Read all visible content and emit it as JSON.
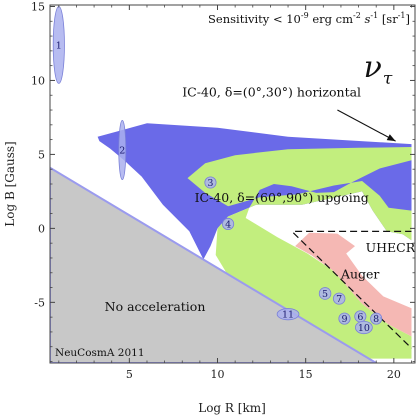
{
  "chart_data": {
    "type": "area",
    "xlabel": "Log R [km]",
    "ylabel": "Log B [Gauss]",
    "xlim": [
      0.5,
      21.2
    ],
    "ylim": [
      -9.1,
      15.1
    ],
    "x_ticks": [
      "5",
      "10",
      "15",
      "20"
    ],
    "y_ticks": [
      "-5",
      "0",
      "5",
      "10",
      "15"
    ],
    "x_tick_values": [
      5,
      10,
      15,
      20
    ],
    "y_tick_values": [
      -5,
      0,
      5,
      10,
      15
    ],
    "grid": false,
    "sensitivity_text": "Sensitivity < 10",
    "sensitivity_exp": "-9",
    "sensitivity_units": "erg cm",
    "sensitivity_units_exp_cm": "-2",
    "sensitivity_units_s": "s",
    "sensitivity_units_exp_s": "-1",
    "sensitivity_units_sr": "[sr",
    "sensitivity_units_exp_sr": "-1",
    "sensitivity_close": "]",
    "flavor_symbol": "ν",
    "flavor_subscript": "τ",
    "credit": "NeuCosmA 2011",
    "colors": {
      "horizontal": "#6a6ae8",
      "upgoing": "#c2ee7e",
      "auger": "#f5b8b4",
      "no_acceleration": "#c8c8c8",
      "no_acceleration_edge": "#9b9bee",
      "source": "#aab0ee",
      "source_edge": "#7a80d8"
    },
    "regions": [
      {
        "name": "IC-40, δ=(0°,30°) horizontal",
        "label": "IC-40, δ=(0°,30°) horizontal",
        "color_key": "horizontal",
        "polygon": [
          [
            3.2,
            6.2
          ],
          [
            6,
            7.1
          ],
          [
            10,
            6.8
          ],
          [
            14,
            6.2
          ],
          [
            21,
            5.7
          ],
          [
            21,
            -0.8
          ],
          [
            20.5,
            -0.4
          ],
          [
            19.6,
            -0.2
          ],
          [
            18.8,
            1.2
          ],
          [
            18.2,
            2.5
          ],
          [
            14.8,
            1.6
          ],
          [
            12.2,
            1.6
          ],
          [
            10.6,
            0.8
          ],
          [
            10,
            0
          ],
          [
            9.6,
            -1.2
          ],
          [
            9.2,
            -2.1
          ],
          [
            8.4,
            -0.2
          ],
          [
            6.9,
            1.6
          ],
          [
            5.7,
            3.5
          ],
          [
            4.7,
            4.6
          ],
          [
            3.9,
            5.4
          ],
          [
            3.3,
            5.9
          ]
        ]
      },
      {
        "name": "IC-40, δ=(60°,90°) upgoing",
        "label": "IC-40, δ=(60°,90°) upgoing",
        "color_key": "upgoing",
        "polygon": [
          [
            9.3,
            4.4
          ],
          [
            11,
            4.95
          ],
          [
            14,
            5.35
          ],
          [
            18,
            5.45
          ],
          [
            21,
            5.5
          ],
          [
            21,
            4.6
          ],
          [
            19.2,
            4.05
          ],
          [
            17.6,
            3.1
          ],
          [
            16.6,
            2.45
          ],
          [
            15.6,
            2.4
          ],
          [
            14.2,
            2.85
          ],
          [
            13.2,
            3
          ],
          [
            12.4,
            2.6
          ],
          [
            11.8,
            1.4
          ],
          [
            11.6,
            0.7
          ],
          [
            13.4,
            -0.6
          ],
          [
            15.1,
            -1.7
          ],
          [
            16.6,
            -2.9
          ],
          [
            18.2,
            -5.1
          ],
          [
            19.7,
            -6.5
          ],
          [
            21,
            -7.3
          ],
          [
            21,
            -8.8
          ],
          [
            14,
            -8.8
          ],
          [
            12.4,
            -6.6
          ],
          [
            11.2,
            -4.4
          ],
          [
            10.4,
            -2.8
          ],
          [
            9.9,
            -1.8
          ],
          [
            10,
            0
          ],
          [
            10.6,
            0.8
          ],
          [
            12.2,
            1.6
          ],
          [
            14.8,
            1.6
          ],
          [
            18.2,
            2.5
          ],
          [
            18.8,
            1.2
          ],
          [
            19.6,
            -0.2
          ],
          [
            20.5,
            -0.4
          ],
          [
            21,
            -0.8
          ],
          [
            21,
            1.2
          ],
          [
            19.7,
            1.4
          ],
          [
            19.2,
            2.2
          ],
          [
            18.2,
            3.2
          ],
          [
            16.6,
            2.9
          ],
          [
            14.5,
            2.3
          ],
          [
            12.4,
            2.1
          ],
          [
            10.6,
            1.5
          ],
          [
            9.3,
            2.4
          ],
          [
            8.3,
            3.4
          ]
        ]
      },
      {
        "name": "Auger",
        "label": "Auger",
        "color_key": "auger",
        "polygon": [
          [
            14.4,
            -1.2
          ],
          [
            15.2,
            -0.3
          ],
          [
            16.8,
            -0.35
          ],
          [
            17.8,
            -1.2
          ],
          [
            17.3,
            -1.7
          ],
          [
            18.2,
            -3.2
          ],
          [
            19.4,
            -4.6
          ],
          [
            21,
            -5.4
          ],
          [
            21,
            -7.3
          ],
          [
            19.7,
            -6.5
          ],
          [
            18.2,
            -5.1
          ],
          [
            16.6,
            -2.9
          ],
          [
            15.3,
            -1.8
          ]
        ]
      },
      {
        "name": "No acceleration",
        "label": "No acceleration",
        "color_key": "no_acceleration",
        "polygon": [
          [
            0.5,
            4.1
          ],
          [
            0.5,
            -9.1
          ],
          [
            19,
            -9.1
          ]
        ]
      }
    ],
    "region_labels": [
      {
        "text": "IC-40, δ=(60°,90°) upgoing",
        "x": 8.7,
        "y": 1.8
      },
      {
        "text": "UHECR",
        "x": 18.4,
        "y": -1.6
      },
      {
        "text": "Auger",
        "x": 17,
        "y": -3.4
      },
      {
        "text": "No acceleration",
        "x": 3.6,
        "y": -5.6
      },
      {
        "text": "IC-40, δ=(0°,30°) horizontal",
        "x": 8,
        "y": 8.9
      }
    ],
    "arrow": {
      "from": [
        16.8,
        8
      ],
      "to": [
        20.1,
        5.9
      ]
    },
    "uhecr_line": {
      "points": [
        [
          14.4,
          -0.2
        ],
        [
          21,
          -0.2
        ]
      ],
      "style": "dashed"
    },
    "auger_line": {
      "points": [
        [
          14.3,
          -0.3
        ],
        [
          21,
          -8.1
        ]
      ],
      "style": "dashed"
    },
    "sources": [
      {
        "id": "1",
        "x": 1.0,
        "y": 12.4,
        "rx": 0.32,
        "ry": 2.6
      },
      {
        "id": "2",
        "x": 4.6,
        "y": 5.3,
        "rx": 0.2,
        "ry": 2.0
      },
      {
        "id": "3",
        "x": 9.6,
        "y": 3.1,
        "rx": 0.32,
        "ry": 0.38
      },
      {
        "id": "4",
        "x": 10.6,
        "y": 0.3,
        "rx": 0.32,
        "ry": 0.38
      },
      {
        "id": "5",
        "x": 16.1,
        "y": -4.4,
        "rx": 0.33,
        "ry": 0.4
      },
      {
        "id": "6",
        "x": 18.1,
        "y": -5.95,
        "rx": 0.32,
        "ry": 0.38
      },
      {
        "id": "7",
        "x": 16.9,
        "y": -4.75,
        "rx": 0.33,
        "ry": 0.38
      },
      {
        "id": "8",
        "x": 19.0,
        "y": -6.1,
        "rx": 0.32,
        "ry": 0.38
      },
      {
        "id": "9",
        "x": 17.2,
        "y": -6.1,
        "rx": 0.32,
        "ry": 0.38
      },
      {
        "id": "10",
        "x": 18.3,
        "y": -6.7,
        "rx": 0.48,
        "ry": 0.42
      },
      {
        "id": "11",
        "x": 14.0,
        "y": -5.8,
        "rx": 0.62,
        "ry": 0.38
      }
    ]
  }
}
